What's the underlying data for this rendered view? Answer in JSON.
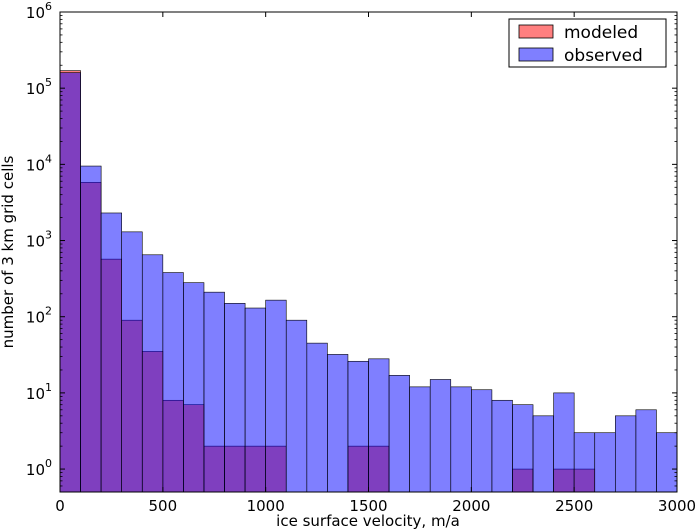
{
  "chart_data": {
    "type": "bar",
    "subtype": "overlaid-histogram",
    "title": "",
    "xlabel": "ice surface velocity, m/a",
    "ylabel": "number of 3 km grid cells",
    "xlim": [
      0,
      3000
    ],
    "ylim": [
      0.5,
      1000000
    ],
    "yscale": "log",
    "grid": false,
    "legend_position": "top-right",
    "bin_width": 100,
    "x_bin_starts": [
      0,
      100,
      200,
      300,
      400,
      500,
      600,
      700,
      800,
      900,
      1000,
      1100,
      1200,
      1300,
      1400,
      1500,
      1600,
      1700,
      1800,
      1900,
      2000,
      2100,
      2200,
      2300,
      2400,
      2500,
      2600,
      2700,
      2800,
      2900
    ],
    "x_ticks": [
      0,
      500,
      1000,
      1500,
      2000,
      2500,
      3000
    ],
    "x_tick_labels": [
      "0",
      "500",
      "1000",
      "1500",
      "2000",
      "2500",
      "3000"
    ],
    "y_ticks": [
      1,
      10,
      100,
      1000,
      10000,
      100000,
      1000000
    ],
    "y_tick_labels": [
      {
        "base": "10",
        "exp": "0"
      },
      {
        "base": "10",
        "exp": "1"
      },
      {
        "base": "10",
        "exp": "2"
      },
      {
        "base": "10",
        "exp": "3"
      },
      {
        "base": "10",
        "exp": "4"
      },
      {
        "base": "10",
        "exp": "5"
      },
      {
        "base": "10",
        "exp": "6"
      }
    ],
    "series": [
      {
        "name": "modeled",
        "color": "#ff0000",
        "values": [
          170000,
          5800,
          570,
          90,
          35,
          8,
          7,
          2,
          2,
          2,
          2,
          0,
          0,
          0,
          2,
          2,
          0,
          0,
          0,
          0,
          0,
          0,
          1,
          0,
          1,
          1,
          0,
          0,
          0,
          0
        ]
      },
      {
        "name": "observed",
        "color": "#0000ff",
        "values": [
          160000,
          9500,
          2300,
          1300,
          650,
          380,
          280,
          210,
          150,
          130,
          165,
          90,
          45,
          32,
          26,
          28,
          17,
          12,
          15,
          12,
          11,
          8,
          7,
          5,
          10,
          3,
          3,
          5,
          6,
          3
        ]
      }
    ]
  }
}
